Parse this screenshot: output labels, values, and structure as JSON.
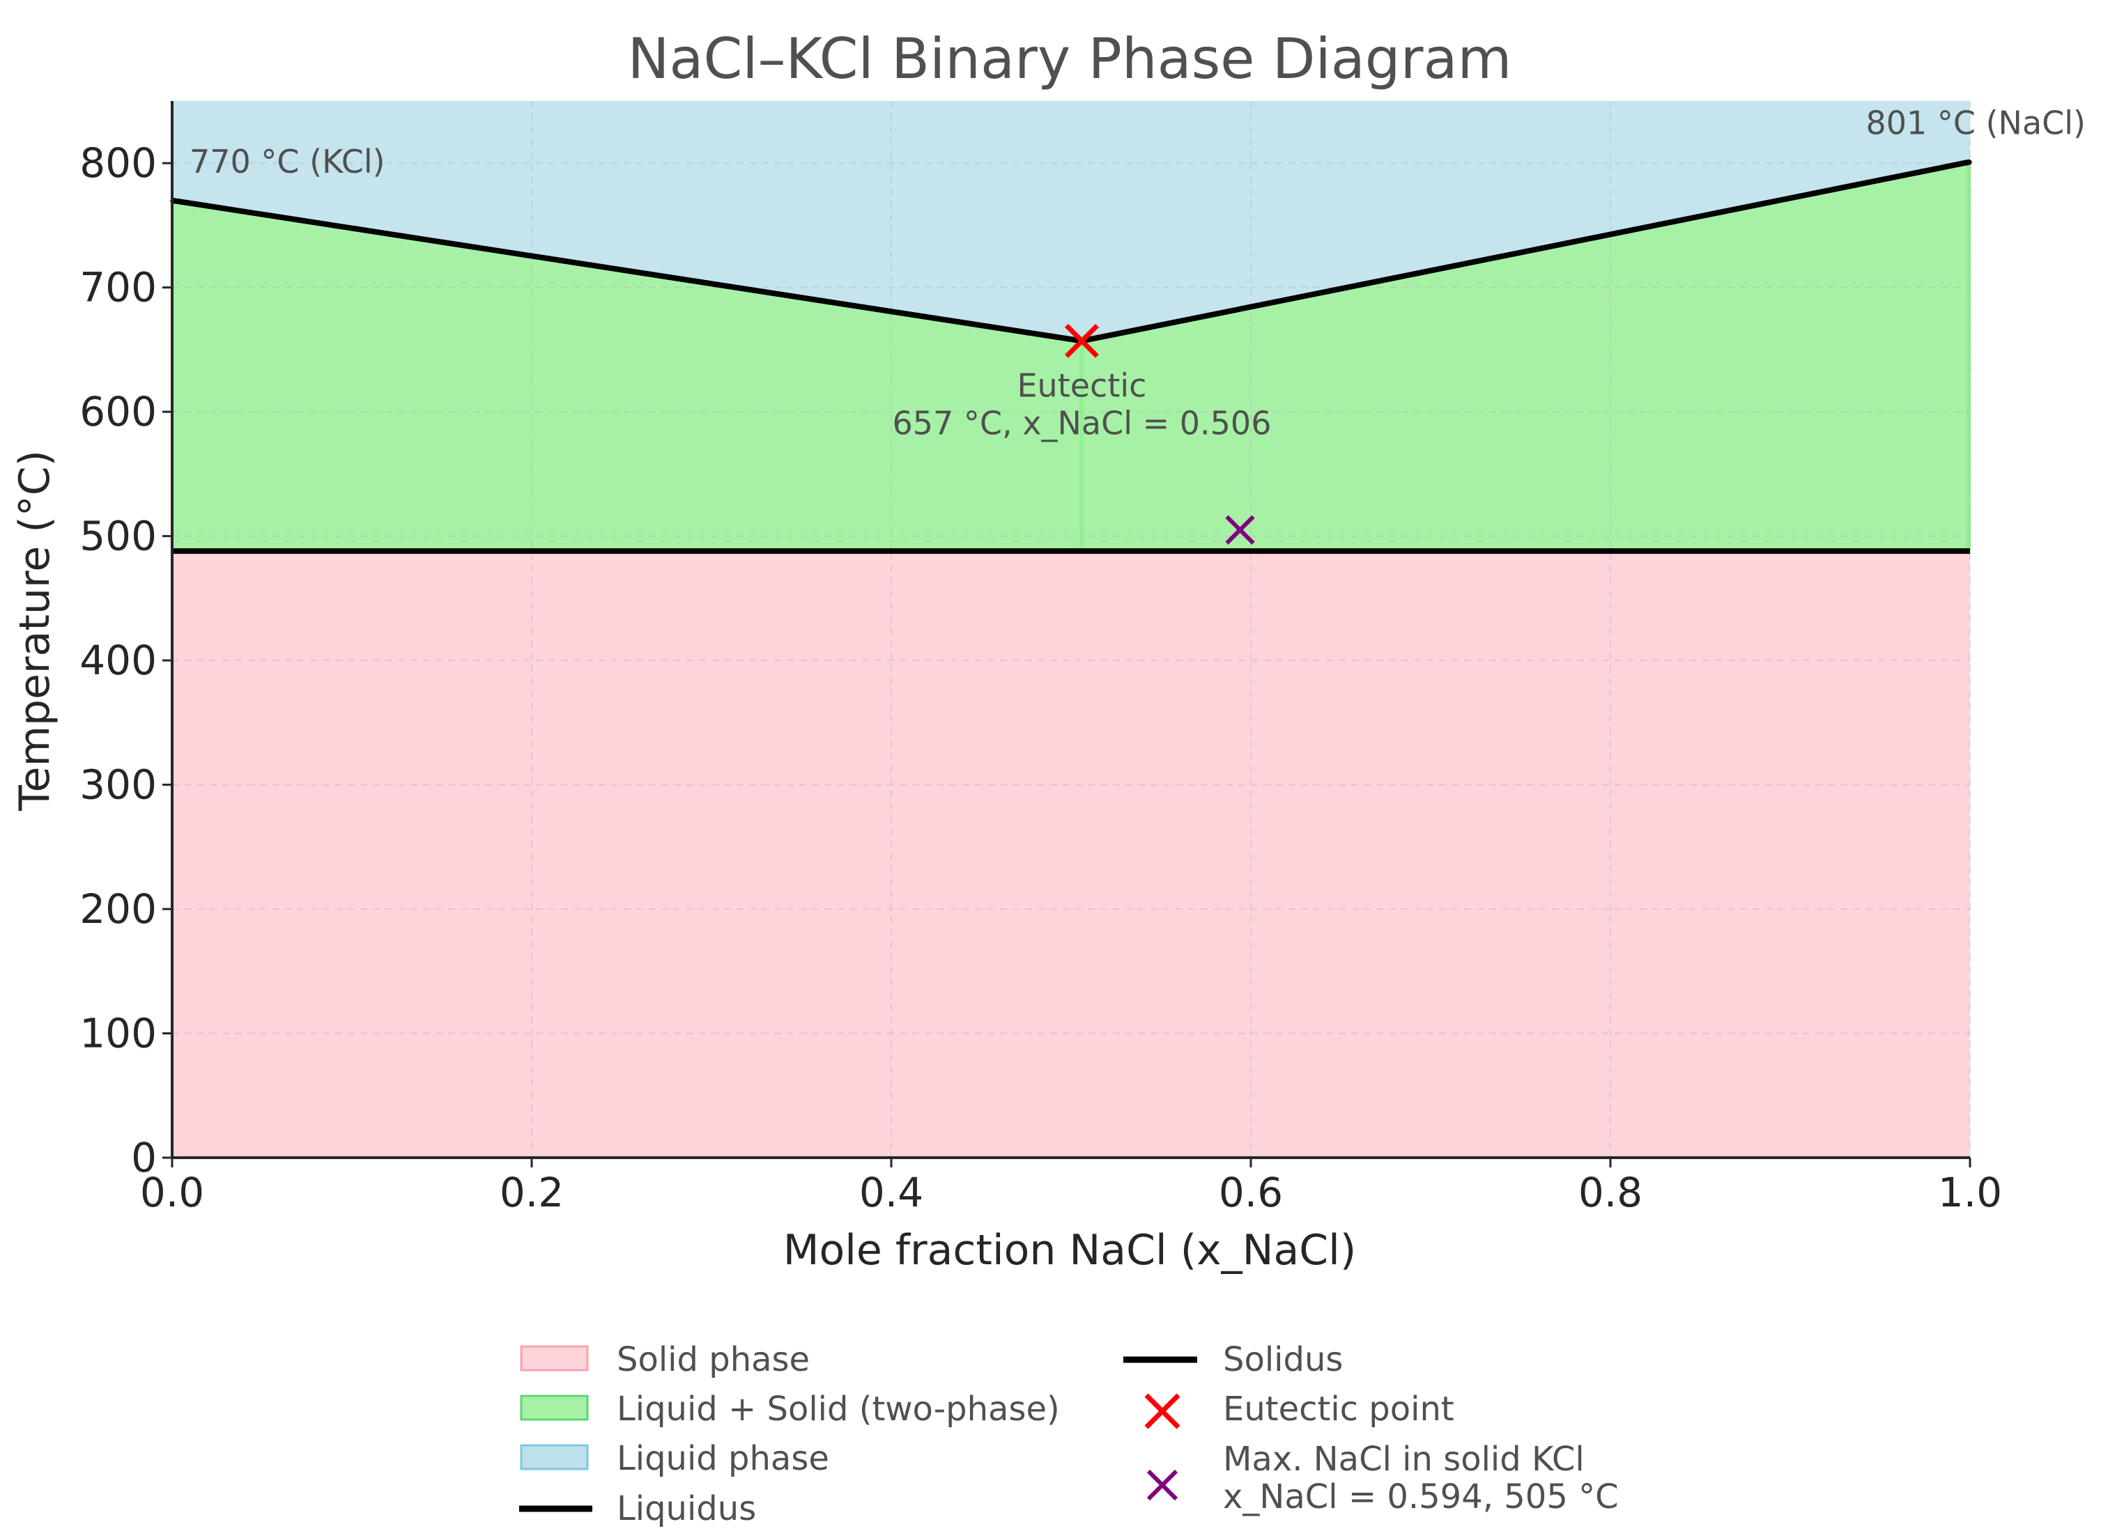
{
  "chart_data": {
    "type": "area",
    "title": "NaCl–KCl Binary Phase Diagram",
    "xlabel": "Mole fraction NaCl (x_NaCl)",
    "ylabel": "Temperature (°C)",
    "xlim": [
      0.0,
      1.0
    ],
    "ylim": [
      0,
      850
    ],
    "xticks": [
      "0.0",
      "0.2",
      "0.4",
      "0.6",
      "0.8",
      "1.0"
    ],
    "xtick_values": [
      0.0,
      0.2,
      0.4,
      0.6,
      0.8,
      1.0
    ],
    "yticks": [
      "0",
      "100",
      "200",
      "300",
      "400",
      "500",
      "600",
      "700",
      "800"
    ],
    "ytick_values": [
      0,
      100,
      200,
      300,
      400,
      500,
      600,
      700,
      800
    ],
    "grid": true,
    "regions": [
      {
        "name": "Solid phase",
        "color": "#ffb6c1"
      },
      {
        "name": "Liquid + Solid (two-phase)",
        "color": "#90ee90"
      },
      {
        "name": "Liquid phase",
        "color": "#add8e6"
      }
    ],
    "liquidus": {
      "name": "Liquidus",
      "x": [
        0.0,
        0.506,
        1.0
      ],
      "y": [
        770,
        657,
        801
      ],
      "color": "#000000"
    },
    "solidus": {
      "name": "Solidus",
      "x": [
        0.0,
        1.0
      ],
      "y": [
        488,
        488
      ],
      "color": "#000000"
    },
    "points": [
      {
        "name": "Eutectic point",
        "x": 0.506,
        "y": 657,
        "color": "#ff0000"
      },
      {
        "name": "Max. NaCl in solid KCl",
        "detail": "x_NaCl = 0.594, 505 °C",
        "x": 0.594,
        "y": 505,
        "color": "#800080"
      }
    ],
    "annotations": [
      {
        "id": "kcl",
        "text": "770 °C (KCl)",
        "x": 0.0,
        "y": 770
      },
      {
        "id": "nacl",
        "text": "801 °C (NaCl)",
        "x": 1.0,
        "y": 801
      },
      {
        "id": "eutectic",
        "line1": "Eutectic",
        "line2": "657 °C, x_NaCl = 0.506",
        "x": 0.506,
        "y": 657
      }
    ],
    "legend_position": "bottom-center"
  }
}
